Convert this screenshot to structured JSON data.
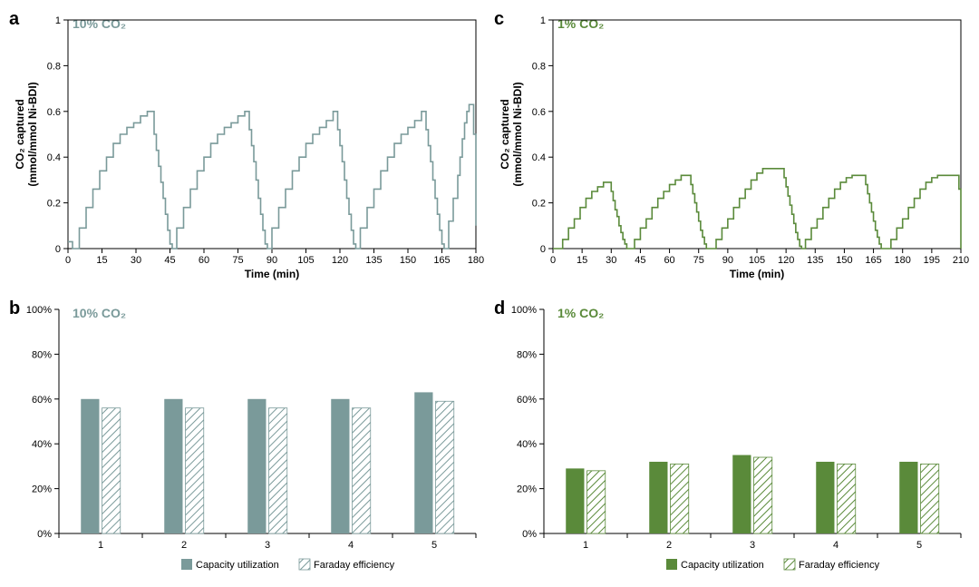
{
  "panels": {
    "a": {
      "letter": "a",
      "label": "10% CO₂",
      "label_color": "#7a9a9a",
      "type": "line",
      "line_color": "#7a9a9a",
      "xlabel": "Time (min)",
      "ylabel": "CO₂ captured\n(mmol/mmol Ni-BDI)",
      "xlim": [
        0,
        180
      ],
      "ylim": [
        0,
        1
      ],
      "xticks": [
        0,
        15,
        30,
        45,
        60,
        75,
        90,
        105,
        120,
        135,
        150,
        165,
        180
      ],
      "yticks": [
        0,
        0.2,
        0.4,
        0.6,
        0.8,
        1
      ],
      "points": [
        [
          0,
          0.03
        ],
        [
          1,
          0.03
        ],
        [
          2,
          0.0
        ],
        [
          3,
          0.0
        ],
        [
          5,
          0.09
        ],
        [
          6,
          0.09
        ],
        [
          8,
          0.18
        ],
        [
          9,
          0.18
        ],
        [
          11,
          0.26
        ],
        [
          12,
          0.26
        ],
        [
          14,
          0.34
        ],
        [
          15,
          0.34
        ],
        [
          17,
          0.4
        ],
        [
          18,
          0.4
        ],
        [
          20,
          0.46
        ],
        [
          21,
          0.46
        ],
        [
          23,
          0.5
        ],
        [
          24,
          0.5
        ],
        [
          26,
          0.53
        ],
        [
          27,
          0.53
        ],
        [
          29,
          0.55
        ],
        [
          30,
          0.55
        ],
        [
          32,
          0.58
        ],
        [
          33,
          0.58
        ],
        [
          35,
          0.6
        ],
        [
          36,
          0.6
        ],
        [
          38,
          0.57
        ],
        [
          38,
          0.5
        ],
        [
          39,
          0.43
        ],
        [
          40,
          0.36
        ],
        [
          41,
          0.29
        ],
        [
          42,
          0.22
        ],
        [
          43,
          0.15
        ],
        [
          44,
          0.08
        ],
        [
          45,
          0.02
        ],
        [
          46,
          0.0
        ],
        [
          48,
          0.09
        ],
        [
          49,
          0.09
        ],
        [
          51,
          0.18
        ],
        [
          52,
          0.18
        ],
        [
          54,
          0.26
        ],
        [
          55,
          0.26
        ],
        [
          57,
          0.34
        ],
        [
          58,
          0.34
        ],
        [
          60,
          0.4
        ],
        [
          61,
          0.4
        ],
        [
          63,
          0.46
        ],
        [
          64,
          0.46
        ],
        [
          66,
          0.5
        ],
        [
          67,
          0.5
        ],
        [
          69,
          0.53
        ],
        [
          70,
          0.53
        ],
        [
          72,
          0.55
        ],
        [
          73,
          0.55
        ],
        [
          75,
          0.58
        ],
        [
          76,
          0.58
        ],
        [
          78,
          0.6
        ],
        [
          79,
          0.6
        ],
        [
          80,
          0.52
        ],
        [
          81,
          0.45
        ],
        [
          82,
          0.38
        ],
        [
          83,
          0.3
        ],
        [
          84,
          0.22
        ],
        [
          85,
          0.15
        ],
        [
          86,
          0.08
        ],
        [
          87,
          0.02
        ],
        [
          88,
          0.0
        ],
        [
          90,
          0.09
        ],
        [
          91,
          0.09
        ],
        [
          93,
          0.18
        ],
        [
          94,
          0.18
        ],
        [
          96,
          0.26
        ],
        [
          97,
          0.26
        ],
        [
          99,
          0.34
        ],
        [
          100,
          0.34
        ],
        [
          102,
          0.4
        ],
        [
          103,
          0.4
        ],
        [
          105,
          0.46
        ],
        [
          106,
          0.46
        ],
        [
          108,
          0.5
        ],
        [
          109,
          0.5
        ],
        [
          111,
          0.53
        ],
        [
          112,
          0.53
        ],
        [
          114,
          0.56
        ],
        [
          115,
          0.56
        ],
        [
          117,
          0.6
        ],
        [
          118,
          0.6
        ],
        [
          119,
          0.52
        ],
        [
          120,
          0.45
        ],
        [
          121,
          0.38
        ],
        [
          122,
          0.3
        ],
        [
          123,
          0.22
        ],
        [
          124,
          0.15
        ],
        [
          125,
          0.08
        ],
        [
          126,
          0.02
        ],
        [
          127,
          0.0
        ],
        [
          129,
          0.09
        ],
        [
          130,
          0.09
        ],
        [
          132,
          0.18
        ],
        [
          133,
          0.18
        ],
        [
          135,
          0.26
        ],
        [
          136,
          0.26
        ],
        [
          138,
          0.34
        ],
        [
          139,
          0.34
        ],
        [
          141,
          0.4
        ],
        [
          142,
          0.4
        ],
        [
          144,
          0.46
        ],
        [
          145,
          0.46
        ],
        [
          147,
          0.5
        ],
        [
          148,
          0.5
        ],
        [
          150,
          0.53
        ],
        [
          151,
          0.53
        ],
        [
          153,
          0.56
        ],
        [
          154,
          0.56
        ],
        [
          156,
          0.6
        ],
        [
          157,
          0.6
        ],
        [
          158,
          0.52
        ],
        [
          159,
          0.45
        ],
        [
          160,
          0.38
        ],
        [
          161,
          0.3
        ],
        [
          162,
          0.22
        ],
        [
          163,
          0.15
        ],
        [
          164,
          0.08
        ],
        [
          165,
          0.02
        ],
        [
          166,
          0.0
        ],
        [
          168,
          0.12
        ],
        [
          169,
          0.12
        ],
        [
          170,
          0.22
        ],
        [
          171,
          0.22
        ],
        [
          172,
          0.32
        ],
        [
          173,
          0.4
        ],
        [
          174,
          0.48
        ],
        [
          175,
          0.55
        ],
        [
          176,
          0.6
        ],
        [
          177,
          0.63
        ],
        [
          178,
          0.63
        ],
        [
          179,
          0.5
        ],
        [
          180,
          0.1
        ]
      ]
    },
    "b": {
      "letter": "b",
      "label": "10% CO₂",
      "label_color": "#7a9a9a",
      "type": "bar",
      "solid_color": "#7a9a9a",
      "hatch_color": "#7a9a9a",
      "categories": [
        1,
        2,
        3,
        4,
        5
      ],
      "capacity": [
        60,
        60,
        60,
        60,
        63
      ],
      "faraday": [
        56,
        56,
        56,
        56,
        59
      ],
      "ylim": [
        0,
        100
      ],
      "yticks": [
        0,
        20,
        40,
        60,
        80,
        100
      ],
      "legend": [
        "Capacity utilization",
        "Faraday efficiency"
      ]
    },
    "c": {
      "letter": "c",
      "label": "1% CO₂",
      "label_color": "#5a8a3a",
      "type": "line",
      "line_color": "#5a8a3a",
      "xlabel": "Time (min)",
      "ylabel": "CO₂ captured\n(mmol/mmol Ni-BDI)",
      "xlim": [
        0,
        210
      ],
      "ylim": [
        0,
        1
      ],
      "xticks": [
        0,
        15,
        30,
        45,
        60,
        75,
        90,
        105,
        120,
        135,
        150,
        165,
        180,
        195,
        210
      ],
      "yticks": [
        0,
        0.2,
        0.4,
        0.6,
        0.8,
        1
      ],
      "points": [
        [
          0,
          0.0
        ],
        [
          2,
          0.0
        ],
        [
          5,
          0.04
        ],
        [
          6,
          0.04
        ],
        [
          8,
          0.09
        ],
        [
          9,
          0.09
        ],
        [
          11,
          0.13
        ],
        [
          12,
          0.13
        ],
        [
          14,
          0.18
        ],
        [
          15,
          0.18
        ],
        [
          17,
          0.22
        ],
        [
          18,
          0.22
        ],
        [
          20,
          0.25
        ],
        [
          21,
          0.25
        ],
        [
          23,
          0.27
        ],
        [
          24,
          0.27
        ],
        [
          26,
          0.29
        ],
        [
          29,
          0.29
        ],
        [
          30,
          0.25
        ],
        [
          31,
          0.21
        ],
        [
          32,
          0.17
        ],
        [
          33,
          0.14
        ],
        [
          34,
          0.1
        ],
        [
          35,
          0.07
        ],
        [
          36,
          0.04
        ],
        [
          37,
          0.02
        ],
        [
          38,
          0.0
        ],
        [
          40,
          0.0
        ],
        [
          42,
          0.04
        ],
        [
          43,
          0.04
        ],
        [
          45,
          0.09
        ],
        [
          46,
          0.09
        ],
        [
          48,
          0.13
        ],
        [
          49,
          0.13
        ],
        [
          51,
          0.18
        ],
        [
          52,
          0.18
        ],
        [
          54,
          0.22
        ],
        [
          55,
          0.22
        ],
        [
          57,
          0.25
        ],
        [
          58,
          0.25
        ],
        [
          60,
          0.28
        ],
        [
          61,
          0.28
        ],
        [
          63,
          0.3
        ],
        [
          64,
          0.3
        ],
        [
          66,
          0.32
        ],
        [
          70,
          0.32
        ],
        [
          71,
          0.28
        ],
        [
          72,
          0.24
        ],
        [
          73,
          0.2
        ],
        [
          74,
          0.16
        ],
        [
          75,
          0.12
        ],
        [
          76,
          0.08
        ],
        [
          77,
          0.05
        ],
        [
          78,
          0.02
        ],
        [
          79,
          0.0
        ],
        [
          82,
          0.0
        ],
        [
          84,
          0.04
        ],
        [
          85,
          0.04
        ],
        [
          87,
          0.09
        ],
        [
          88,
          0.09
        ],
        [
          90,
          0.13
        ],
        [
          91,
          0.13
        ],
        [
          93,
          0.18
        ],
        [
          94,
          0.18
        ],
        [
          96,
          0.22
        ],
        [
          97,
          0.22
        ],
        [
          99,
          0.26
        ],
        [
          100,
          0.26
        ],
        [
          102,
          0.3
        ],
        [
          103,
          0.3
        ],
        [
          105,
          0.33
        ],
        [
          106,
          0.33
        ],
        [
          108,
          0.35
        ],
        [
          118,
          0.35
        ],
        [
          119,
          0.31
        ],
        [
          120,
          0.27
        ],
        [
          121,
          0.23
        ],
        [
          122,
          0.19
        ],
        [
          123,
          0.15
        ],
        [
          124,
          0.11
        ],
        [
          125,
          0.07
        ],
        [
          126,
          0.04
        ],
        [
          127,
          0.01
        ],
        [
          128,
          0.0
        ],
        [
          130,
          0.04
        ],
        [
          131,
          0.04
        ],
        [
          133,
          0.09
        ],
        [
          134,
          0.09
        ],
        [
          136,
          0.13
        ],
        [
          137,
          0.13
        ],
        [
          139,
          0.18
        ],
        [
          140,
          0.18
        ],
        [
          142,
          0.22
        ],
        [
          143,
          0.22
        ],
        [
          145,
          0.26
        ],
        [
          146,
          0.26
        ],
        [
          148,
          0.29
        ],
        [
          149,
          0.29
        ],
        [
          151,
          0.31
        ],
        [
          152,
          0.31
        ],
        [
          154,
          0.32
        ],
        [
          160,
          0.32
        ],
        [
          161,
          0.28
        ],
        [
          162,
          0.24
        ],
        [
          163,
          0.2
        ],
        [
          164,
          0.16
        ],
        [
          165,
          0.12
        ],
        [
          166,
          0.08
        ],
        [
          167,
          0.05
        ],
        [
          168,
          0.02
        ],
        [
          169,
          0.0
        ],
        [
          172,
          0.0
        ],
        [
          174,
          0.04
        ],
        [
          175,
          0.04
        ],
        [
          177,
          0.09
        ],
        [
          178,
          0.09
        ],
        [
          180,
          0.13
        ],
        [
          181,
          0.13
        ],
        [
          183,
          0.18
        ],
        [
          184,
          0.18
        ],
        [
          186,
          0.22
        ],
        [
          187,
          0.22
        ],
        [
          189,
          0.26
        ],
        [
          190,
          0.26
        ],
        [
          192,
          0.29
        ],
        [
          193,
          0.29
        ],
        [
          195,
          0.31
        ],
        [
          196,
          0.31
        ],
        [
          198,
          0.32
        ],
        [
          208,
          0.32
        ],
        [
          209,
          0.26
        ],
        [
          210,
          0.0
        ]
      ]
    },
    "d": {
      "letter": "d",
      "label": "1% CO₂",
      "label_color": "#5a8a3a",
      "type": "bar",
      "solid_color": "#5a8a3a",
      "hatch_color": "#5a8a3a",
      "categories": [
        1,
        2,
        3,
        4,
        5
      ],
      "capacity": [
        29,
        32,
        35,
        32,
        32
      ],
      "faraday": [
        28,
        31,
        34,
        31,
        31
      ],
      "ylim": [
        0,
        100
      ],
      "yticks": [
        0,
        20,
        40,
        60,
        80,
        100
      ],
      "legend": [
        "Capacity utilization",
        "Faraday efficiency"
      ]
    }
  }
}
